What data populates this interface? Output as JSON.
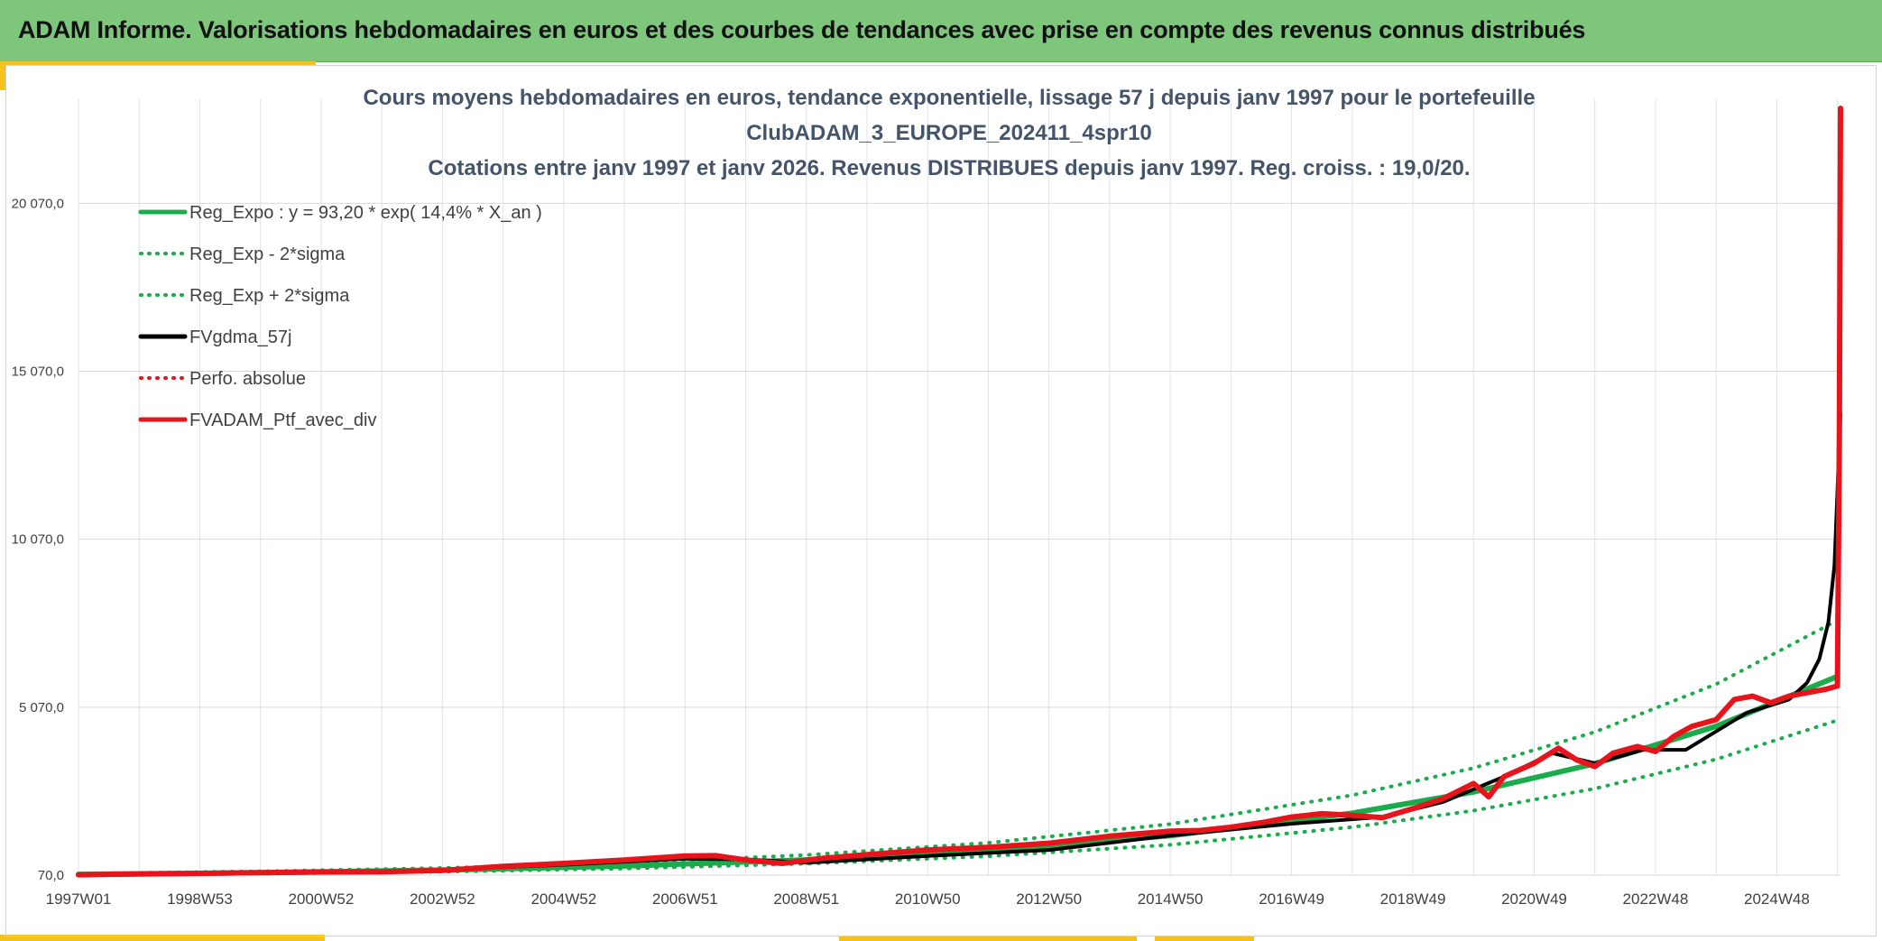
{
  "header": {
    "title": "ADAM Informe. Valorisations hebdomadaires en euros et des courbes de tendances avec prise en compte des revenus connus distribués"
  },
  "colors": {
    "green_reg": "#1aab4b",
    "black_fv": "#000000",
    "red_adam": "#e8141c",
    "header_bg": "#7dc67b",
    "accent": "#f5c21b"
  },
  "chart_data": {
    "type": "line",
    "title_lines": [
      "Cours moyens hebdomadaires en euros, tendance exponentielle, lissage 57 j depuis janv 1997 pour le portefeuille",
      "ClubADAM_3_EUROPE_202411_4spr10",
      "Cotations entre janv 1997 et janv 2026. Revenus DISTRIBUES depuis janv 1997. Reg. croiss. : 19,0/20."
    ],
    "x_range": [
      1997.0,
      2026.05
    ],
    "x_tick_labels": [
      "1997W01",
      "1998W53",
      "2000W52",
      "2002W52",
      "2004W52",
      "2006W51",
      "2008W51",
      "2010W50",
      "2012W50",
      "2014W50",
      "2016W49",
      "2018W49",
      "2020W49",
      "2022W48",
      "2024W48"
    ],
    "x_tick_years": [
      1997.0,
      1999.0,
      2001.0,
      2003.0,
      2005.0,
      2007.0,
      2009.0,
      2011.0,
      2013.0,
      2015.0,
      2017.0,
      2019.0,
      2021.0,
      2023.0,
      2025.0
    ],
    "y_range": [
      70,
      22900
    ],
    "y_ticks": [
      70,
      5070,
      10070,
      15070,
      20070
    ],
    "y_tick_labels": [
      "70,0",
      "5 070,0",
      "10 070,0",
      "15 070,0",
      "20 070,0"
    ],
    "grid": true,
    "legend_position": "top-left",
    "legend": [
      {
        "label": "Reg_Expo : y = 93,20 * exp( 14,4% *  X_an )",
        "color": "#1aab4b",
        "style": "solid"
      },
      {
        "label": "Reg_Exp - 2*sigma",
        "color": "#1aab4b",
        "style": "dotted"
      },
      {
        "label": "Reg_Exp + 2*sigma",
        "color": "#1aab4b",
        "style": "dotted"
      },
      {
        "label": "FVgdma_57j",
        "color": "#000000",
        "style": "solid"
      },
      {
        "label": "Perfo. absolue",
        "color": "#e8141c",
        "style": "dotted"
      },
      {
        "label": "FVADAM_Ptf_avec_div",
        "color": "#e8141c",
        "style": "solid"
      }
    ],
    "series": [
      {
        "name": "Reg_Expo : y = 93,20 * exp( 14,4% *  X_an )",
        "color": "#1aab4b",
        "style": "solid",
        "width": 6,
        "x": [
          1997,
          2000,
          2003,
          2006,
          2009,
          2012,
          2015,
          2018,
          2020,
          2022,
          2024,
          2026
        ],
        "y": [
          93,
          143,
          220,
          340,
          524,
          807,
          1243,
          1916,
          2547,
          3386,
          4502,
          5985
        ]
      },
      {
        "name": "Reg_Exp - 2*sigma",
        "color": "#1aab4b",
        "style": "dotted",
        "width": 4,
        "x": [
          1997,
          2000,
          2003,
          2006,
          2009,
          2012,
          2015,
          2018,
          2020,
          2022,
          2024,
          2026
        ],
        "y": [
          73,
          112,
          172,
          266,
          410,
          631,
          972,
          1498,
          1991,
          2647,
          3520,
          4680
        ]
      },
      {
        "name": "Reg_Exp + 2*sigma",
        "color": "#1aab4b",
        "style": "dotted",
        "width": 4,
        "x": [
          1997,
          2000,
          2003,
          2006,
          2009,
          2012,
          2015,
          2018,
          2020,
          2022,
          2024,
          2026
        ],
        "y": [
          119,
          183,
          282,
          435,
          670,
          1032,
          1590,
          2450,
          3258,
          4331,
          5757,
          7655
        ]
      },
      {
        "name": "FVgdma_57j",
        "color": "#000000",
        "style": "solid",
        "width": 4,
        "x": [
          1997,
          1999,
          2001,
          2003,
          2005,
          2007,
          2008,
          2009,
          2011,
          2013,
          2015,
          2017,
          2018.5,
          2019.5,
          2020.5,
          2021.3,
          2022,
          2022.8,
          2023.5,
          2024.5,
          2025.2,
          2025.5,
          2025.7,
          2025.85,
          2025.95,
          2026.0,
          2026.05
        ],
        "y": [
          80,
          110,
          150,
          230,
          380,
          560,
          540,
          440,
          640,
          820,
          1250,
          1600,
          1800,
          2250,
          3000,
          3700,
          3400,
          3800,
          3800,
          4900,
          5300,
          5800,
          6500,
          7600,
          9300,
          11500,
          13800
        ]
      },
      {
        "name": "FVADAM_Ptf_avec_div",
        "color": "#e8141c",
        "style": "solid",
        "width": 6,
        "x": [
          1997,
          1998,
          1999,
          2000,
          2001,
          2002,
          2003,
          2004,
          2005,
          2006,
          2007,
          2007.5,
          2008,
          2008.6,
          2009.2,
          2010,
          2011,
          2012,
          2013,
          2014,
          2015,
          2015.5,
          2016,
          2016.5,
          2017,
          2017.5,
          2018,
          2018.5,
          2019,
          2019.5,
          2020,
          2020.25,
          2020.5,
          2021,
          2021.4,
          2021.7,
          2022,
          2022.3,
          2022.7,
          2023,
          2023.3,
          2023.6,
          2024,
          2024.3,
          2024.6,
          2024.9,
          2025.2,
          2025.5,
          2025.8,
          2026.0,
          2026.03,
          2026.05
        ],
        "y": [
          80,
          105,
          120,
          145,
          165,
          170,
          210,
          330,
          420,
          520,
          640,
          650,
          520,
          420,
          560,
          680,
          820,
          900,
          1020,
          1230,
          1380,
          1400,
          1500,
          1630,
          1800,
          1900,
          1850,
          1780,
          2050,
          2350,
          2800,
          2400,
          3000,
          3400,
          3850,
          3500,
          3300,
          3700,
          3900,
          3750,
          4200,
          4500,
          4700,
          5300,
          5400,
          5200,
          5400,
          5500,
          5600,
          5700,
          13000,
          22900
        ]
      }
    ]
  }
}
